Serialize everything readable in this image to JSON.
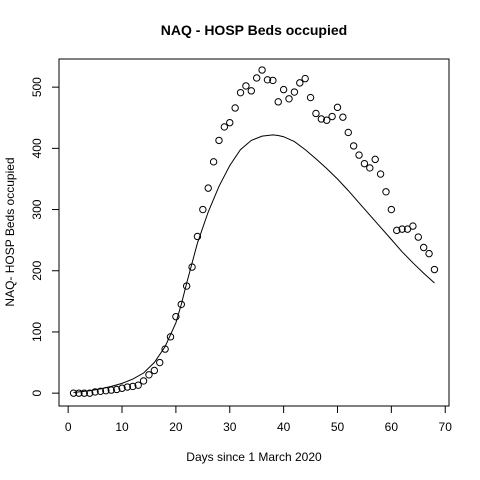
{
  "chart_data": {
    "type": "scatter",
    "title": "NAQ - HOSP Beds occupied",
    "xlabel": "Days since 1 March 2020",
    "ylabel": "NAQ- HOSP Beds occupied",
    "xlim": [
      -1.7,
      70.7
    ],
    "ylim": [
      -21,
      546
    ],
    "xticks": [
      0,
      10,
      20,
      30,
      40,
      50,
      60,
      70
    ],
    "yticks": [
      0,
      100,
      200,
      300,
      400,
      500
    ],
    "grid": false,
    "legend": "none",
    "series": [
      {
        "style": "points",
        "marker": "open-circle",
        "x": [
          1,
          2,
          3,
          4,
          5,
          6,
          7,
          8,
          9,
          10,
          11,
          12,
          13,
          14,
          15,
          16,
          17,
          18,
          19,
          20,
          21,
          22,
          23,
          24,
          25,
          26,
          27,
          28,
          29,
          30,
          31,
          32,
          33,
          34,
          35,
          36,
          37,
          38,
          39,
          40,
          41,
          42,
          43,
          44,
          45,
          46,
          47,
          48,
          49,
          50,
          51,
          52,
          53,
          54,
          55,
          56,
          57,
          58,
          59,
          60,
          61,
          62,
          63,
          64,
          65,
          66,
          67,
          68
        ],
        "y": [
          0,
          0,
          0,
          0,
          2,
          3,
          4,
          5,
          6,
          8,
          10,
          11,
          13,
          20,
          30,
          37,
          50,
          72,
          92,
          125,
          145,
          175,
          206,
          256,
          300,
          335,
          378,
          413,
          435,
          442,
          466,
          491,
          502,
          494,
          515,
          528,
          512,
          511,
          476,
          496,
          481,
          492,
          507,
          514,
          483,
          457,
          448,
          446,
          452,
          467,
          451,
          426,
          404,
          389,
          375,
          368,
          382,
          358,
          329,
          300,
          266,
          268,
          268,
          273,
          255,
          238,
          228,
          202
        ]
      },
      {
        "style": "line",
        "x": [
          1,
          2,
          4,
          6,
          8,
          10,
          12,
          14,
          16,
          18,
          20,
          21,
          22,
          24,
          26,
          28,
          30,
          32,
          34,
          36,
          38,
          39,
          40,
          42,
          44,
          46,
          48,
          50,
          52,
          54,
          56,
          58,
          60,
          62,
          64,
          66,
          68
        ],
        "y": [
          1,
          2,
          4,
          7,
          11,
          16,
          23,
          33,
          50,
          76,
          115,
          145,
          180,
          245,
          296,
          338,
          372,
          398,
          413,
          420,
          422,
          421,
          419,
          411,
          398,
          383,
          367,
          350,
          331,
          311,
          291,
          271,
          251,
          231,
          213,
          196,
          180
        ]
      }
    ]
  }
}
